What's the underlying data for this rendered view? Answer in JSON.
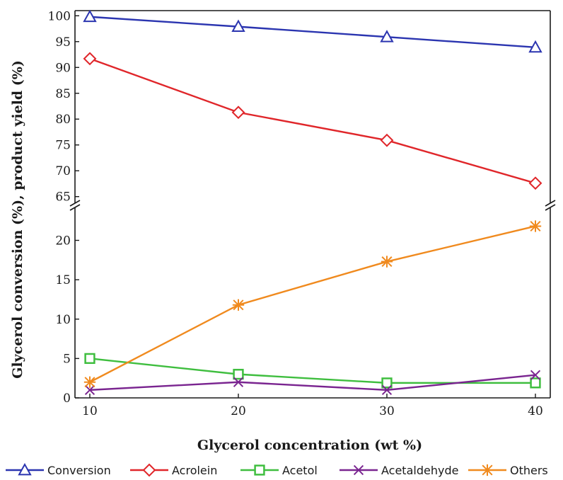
{
  "chart_data": {
    "type": "line",
    "xlabel": "Glycerol concentration (wt %)",
    "ylabel": "Glycerol conversion (%), product yield (%)",
    "x": [
      10,
      20,
      30,
      40
    ],
    "x_ticks": [
      "10",
      "20",
      "30",
      "40"
    ],
    "xlim": [
      9,
      41
    ],
    "axis_break": true,
    "upper_panel": {
      "ylim": [
        64,
        101
      ],
      "y_ticks": [
        65,
        70,
        75,
        80,
        85,
        90,
        95,
        100
      ]
    },
    "lower_panel": {
      "ylim": [
        0,
        24
      ],
      "y_ticks": [
        0,
        5,
        10,
        15,
        20
      ]
    },
    "grid": false,
    "legend_position": "bottom",
    "series": [
      {
        "name": "Conversion",
        "panel": "upper",
        "values": [
          99.8,
          97.9,
          95.9,
          93.9
        ],
        "color": "#2b35b0",
        "marker": "triangle"
      },
      {
        "name": "Acrolein",
        "panel": "upper",
        "values": [
          91.7,
          81.3,
          75.9,
          67.6
        ],
        "color": "#e0262a",
        "marker": "diamond"
      },
      {
        "name": "Acetol",
        "panel": "lower",
        "values": [
          5.0,
          3.0,
          1.9,
          1.9
        ],
        "color": "#3fbe3f",
        "marker": "square"
      },
      {
        "name": "Acetaldehyde",
        "panel": "lower",
        "values": [
          1.0,
          2.0,
          1.0,
          2.9
        ],
        "color": "#7a2590",
        "marker": "x"
      },
      {
        "name": "Others",
        "panel": "lower",
        "values": [
          2.0,
          11.8,
          17.3,
          21.8
        ],
        "color": "#f08a1e",
        "marker": "asterisk"
      }
    ]
  }
}
